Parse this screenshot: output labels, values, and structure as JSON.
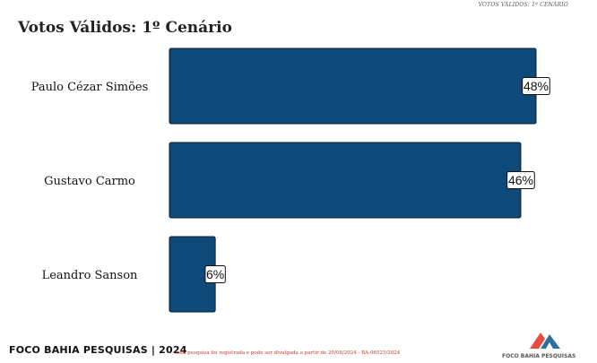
{
  "header": {
    "note": "VOTOS VÁLIDOS: 1º CENÁRIO"
  },
  "chart_data": {
    "type": "bar",
    "orientation": "horizontal",
    "title": "Votos Válidos: 1º Cenário",
    "categories": [
      "Paulo Cézar Simões",
      "Gustavo Carmo",
      "Leandro Sanson"
    ],
    "values": [
      48,
      46,
      6
    ],
    "data_labels": [
      "48%",
      "46%",
      "6%"
    ],
    "unit": "%",
    "xlim": [
      0,
      50
    ],
    "grid": false,
    "legend": "none",
    "colors": {
      "bar": "#0d4a7a",
      "bar_edge": "#0a1a2a",
      "label_box": "#ffffff"
    }
  },
  "footer": {
    "brand": "FOCO BAHIA PESQUISAS | 2024",
    "note": "Esta pesquisa foi registrada e pode ser divulgada a partir de 20/08/2024 - BA-06525/2024",
    "logo_text": "FOCO BAHIA PESQUISAS",
    "logo_icon": "mountain-logo-icon",
    "logo_colors": [
      "#e74c3c",
      "#2c6fa3"
    ]
  }
}
